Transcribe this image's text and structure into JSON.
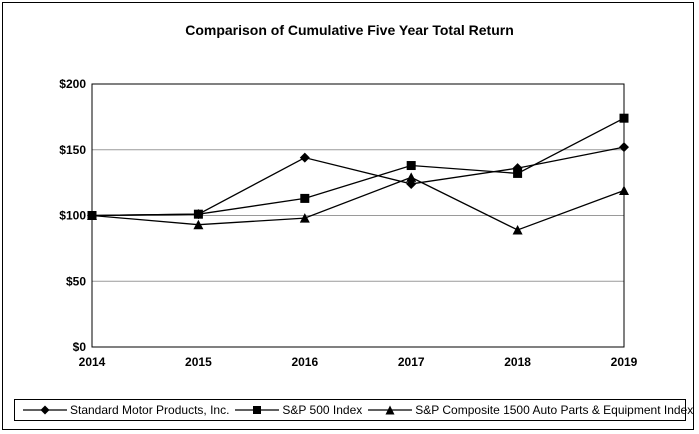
{
  "chart_data": {
    "type": "line",
    "title": "Comparison of Cumulative Five Year Total Return",
    "x": [
      "2014",
      "2015",
      "2016",
      "2017",
      "2018",
      "2019"
    ],
    "ylim": [
      0,
      200
    ],
    "yticks": [
      0,
      50,
      100,
      150,
      200
    ],
    "ytick_labels": [
      "$0",
      "$50",
      "$100",
      "$150",
      "$200"
    ],
    "grid": true,
    "legend_position": "bottom",
    "series": [
      {
        "name": "Standard Motor Products, Inc.",
        "marker": "diamond",
        "values": [
          100,
          101,
          144,
          124,
          136,
          152
        ]
      },
      {
        "name": "S&P 500 Index",
        "marker": "square",
        "values": [
          100,
          101,
          113,
          138,
          132,
          174
        ]
      },
      {
        "name": "S&P Composite 1500 Auto Parts & Equipment Index",
        "marker": "triangle",
        "values": [
          100,
          93,
          98,
          129,
          89,
          119
        ]
      }
    ]
  }
}
